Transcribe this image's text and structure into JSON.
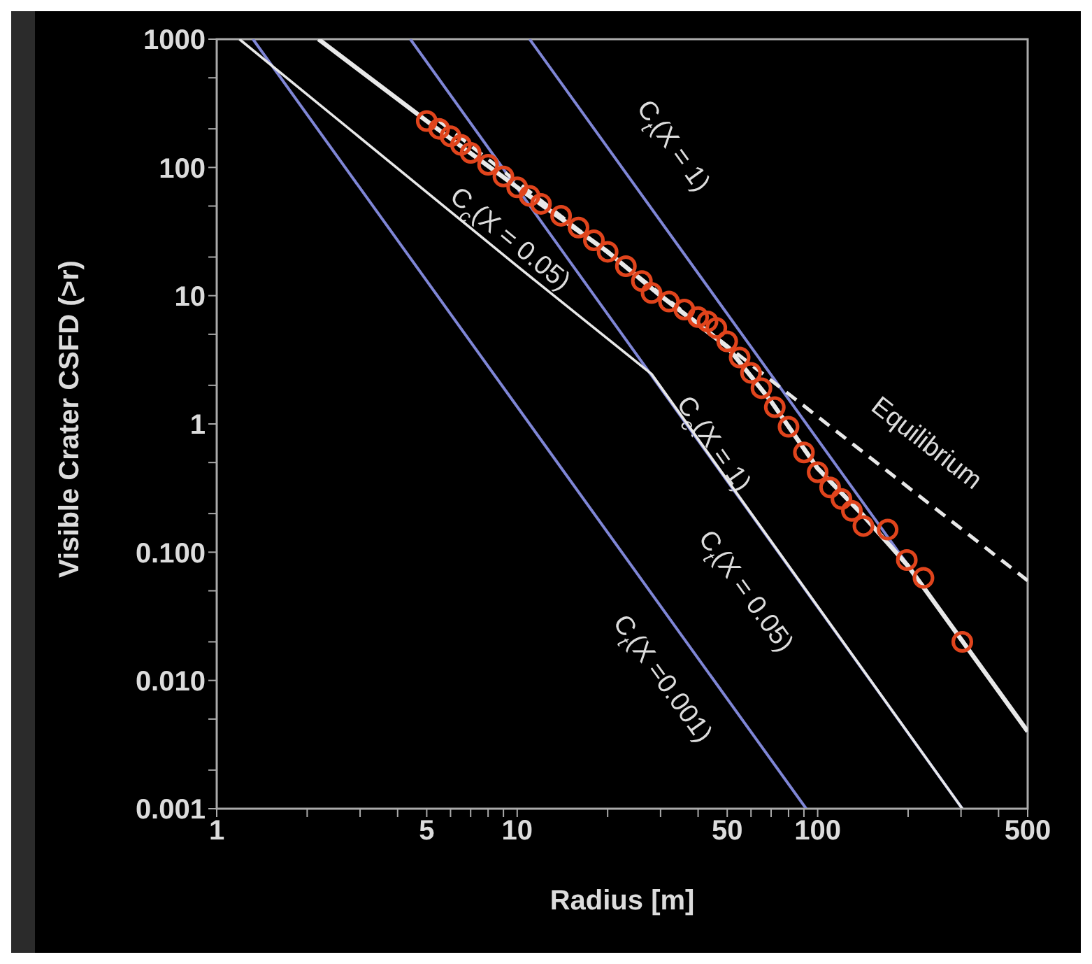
{
  "chart_data": {
    "type": "line",
    "xlabel": "Radius [m]",
    "ylabel": "Visible Crater CSFD (>r)",
    "log": "xy",
    "grid": false,
    "legend": false,
    "xlim": [
      1,
      500
    ],
    "ylim": [
      0.001,
      1000
    ],
    "xticks": [
      1,
      {
        "value": 2,
        "label": null
      },
      {
        "value": 3,
        "label": null
      },
      {
        "value": 4,
        "label": null
      },
      5,
      {
        "value": 6,
        "label": null
      },
      {
        "value": 7,
        "label": null
      },
      {
        "value": 8,
        "label": null
      },
      {
        "value": 9,
        "label": null
      },
      10,
      {
        "value": 20,
        "label": null
      },
      {
        "value": 30,
        "label": null
      },
      {
        "value": 40,
        "label": null
      },
      50,
      {
        "value": 60,
        "label": null
      },
      {
        "value": 70,
        "label": null
      },
      {
        "value": 80,
        "label": null
      },
      {
        "value": 90,
        "label": null
      },
      100,
      {
        "value": 200,
        "label": null
      },
      {
        "value": 300,
        "label": null
      },
      {
        "value": 400,
        "label": null
      },
      500
    ],
    "yticks": [
      {
        "value": 0.001,
        "label": "0.001"
      },
      {
        "value": 0.01,
        "label": "0.010"
      },
      {
        "value": 0.1,
        "label": "0.100"
      },
      1,
      10,
      100,
      1000,
      {
        "value": 0.002,
        "label": null
      },
      {
        "value": 0.005,
        "label": null
      },
      {
        "value": 0.02,
        "label": null
      },
      {
        "value": 0.05,
        "label": null
      },
      {
        "value": 0.2,
        "label": null
      },
      {
        "value": 0.5,
        "label": null
      },
      {
        "value": 2,
        "label": null
      },
      {
        "value": 5,
        "label": null
      },
      {
        "value": 20,
        "label": null
      },
      {
        "value": 50,
        "label": null
      },
      {
        "value": 200,
        "label": null
      },
      {
        "value": 500,
        "label": null
      }
    ],
    "series": [
      {
        "type": "scatter",
        "color": "#e0441c",
        "marker": "circle",
        "x": [
          5,
          5.5,
          6,
          6.5,
          7,
          8,
          9,
          10,
          11,
          12,
          14,
          16,
          18,
          20,
          23,
          26,
          28,
          32,
          36,
          40,
          43,
          46,
          50,
          55,
          60,
          65,
          72,
          80,
          90,
          100,
          110,
          120,
          130,
          142,
          171,
          198,
          225,
          303
        ],
        "values": [
          230,
          200,
          175,
          150,
          130,
          105,
          85,
          70,
          60,
          52,
          42,
          34,
          27,
          22,
          17,
          13,
          10.5,
          9,
          7.8,
          6.8,
          6.3,
          5.6,
          4.4,
          3.3,
          2.5,
          1.9,
          1.35,
          0.95,
          0.6,
          0.42,
          0.32,
          0.26,
          0.21,
          0.16,
          0.15,
          0.087,
          0.063,
          0.02
        ]
      },
      {
        "name": "C$_{t}$(X =0.001)",
        "color": "#7f86d6",
        "line_style": "solid",
        "x": [
          1.32,
          91.6
        ],
        "values": [
          1000,
          0.001
        ]
      },
      {
        "name": "C$_{t}$(X = 0.05)",
        "color": "#7f86d6",
        "line_style": "solid",
        "x": [
          4.41,
          303
        ],
        "values": [
          1000,
          0.001
        ]
      },
      {
        "name": "C$_{t}$(X = 1)",
        "color": "#7f86d6",
        "line_style": "solid",
        "x": [
          11,
          500
        ],
        "values": [
          1000,
          0.004
        ]
      },
      {
        "name": "C$_{c}$(X = 0.05)",
        "color": "#e8e8e8",
        "line_style": "solid",
        "x": [
          1.19,
          10,
          28,
          303
        ],
        "values": [
          1000,
          17,
          2.45,
          0.001
        ]
      },
      {
        "name": "C$_{c}$(X = 1)",
        "color": "#e8e8e8",
        "line_style": "solid",
        "x": [
          2.18,
          5,
          10,
          20,
          30,
          50,
          70,
          100,
          140,
          200,
          500
        ],
        "values": [
          1000,
          230,
          70,
          22,
          10,
          4,
          1.5,
          0.45,
          0.2,
          0.078,
          0.004
        ]
      },
      {
        "name": "Equilibrium",
        "color": "#e8e8e8",
        "line_style": "dashed",
        "x": [
          5.5,
          500
        ],
        "values": [
          230,
          0.06
        ]
      }
    ]
  }
}
